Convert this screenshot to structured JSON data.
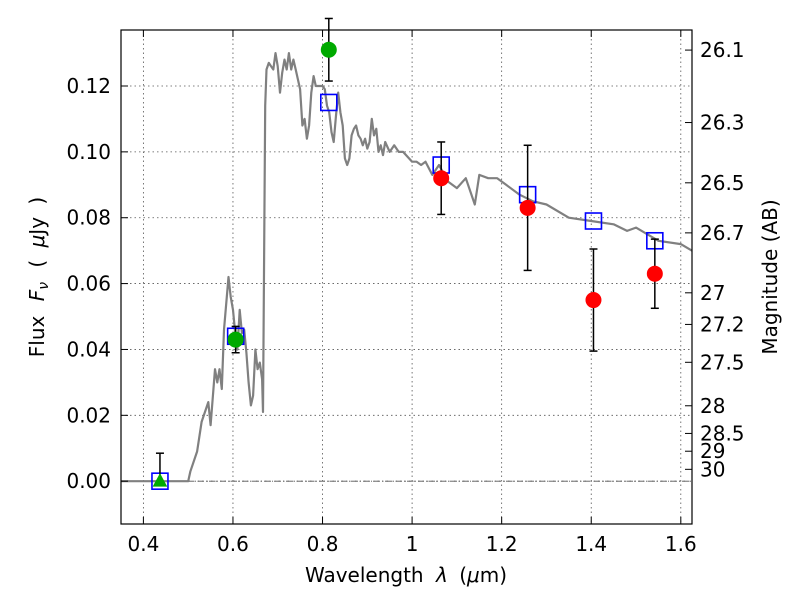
{
  "chart_data": {
    "type": "scatter",
    "xlabel_parts": [
      "Wavelength",
      "λ",
      "(",
      "μ",
      "m)"
    ],
    "ylabel_parts": [
      "Flux",
      "F",
      "ν",
      "(",
      "μ",
      "Jy",
      ")"
    ],
    "y2label": "Magnitude (AB)",
    "xlim": [
      0.35,
      1.625
    ],
    "ylim": [
      -0.013,
      0.137
    ],
    "xticks": [
      0.4,
      0.6,
      0.8,
      1.0,
      1.2,
      1.4,
      1.6
    ],
    "xtick_labels": [
      "0.4",
      "0.6",
      "0.8",
      "1",
      "1.2",
      "1.4",
      "1.6"
    ],
    "yticks": [
      0.0,
      0.02,
      0.04,
      0.06,
      0.08,
      0.1,
      0.12
    ],
    "ytick_labels": [
      "0.00",
      "0.02",
      "0.04",
      "0.06",
      "0.08",
      "0.10",
      "0.12"
    ],
    "grid": true,
    "mag_ticks": [
      {
        "label": "26.1",
        "flux": 0.1309
      },
      {
        "label": "26.3",
        "flux": 0.1089
      },
      {
        "label": "26.5",
        "flux": 0.0906
      },
      {
        "label": "26.7",
        "flux": 0.0754
      },
      {
        "label": "27",
        "flux": 0.0572
      },
      {
        "label": "27.2",
        "flux": 0.0476
      },
      {
        "label": "27.5",
        "flux": 0.0361
      },
      {
        "label": "28",
        "flux": 0.0229
      },
      {
        "label": "28.5",
        "flux": 0.0145
      },
      {
        "label": "29",
        "flux": 0.0091
      },
      {
        "label": "30",
        "flux": 0.0036
      }
    ],
    "series": [
      {
        "style": "model-spectrum",
        "color": "#808080",
        "x": [
          0.35,
          0.5,
          0.505,
          0.52,
          0.53,
          0.545,
          0.55,
          0.56,
          0.565,
          0.57,
          0.575,
          0.58,
          0.59,
          0.595,
          0.6,
          0.605,
          0.61,
          0.615,
          0.62,
          0.625,
          0.63,
          0.635,
          0.64,
          0.645,
          0.65,
          0.655,
          0.66,
          0.665,
          0.667,
          0.672,
          0.675,
          0.68,
          0.685,
          0.69,
          0.695,
          0.7,
          0.705,
          0.71,
          0.715,
          0.72,
          0.725,
          0.73,
          0.735,
          0.74,
          0.745,
          0.75,
          0.755,
          0.76,
          0.765,
          0.77,
          0.775,
          0.78,
          0.785,
          0.79,
          0.8,
          0.805,
          0.81,
          0.815,
          0.82,
          0.825,
          0.83,
          0.835,
          0.84,
          0.845,
          0.85,
          0.855,
          0.86,
          0.865,
          0.87,
          0.875,
          0.88,
          0.885,
          0.89,
          0.895,
          0.9,
          0.905,
          0.91,
          0.915,
          0.92,
          0.925,
          0.93,
          0.935,
          0.94,
          0.95,
          0.96,
          0.97,
          0.98,
          1.0,
          1.01,
          1.02,
          1.03,
          1.045,
          1.06,
          1.08,
          1.1,
          1.12,
          1.14,
          1.15,
          1.17,
          1.19,
          1.21,
          1.24,
          1.27,
          1.3,
          1.35,
          1.4,
          1.45,
          1.48,
          1.5,
          1.55,
          1.6,
          1.625
        ],
        "y": [
          0.0,
          0.0,
          0.003,
          0.009,
          0.018,
          0.024,
          0.017,
          0.034,
          0.03,
          0.034,
          0.028,
          0.046,
          0.062,
          0.056,
          0.052,
          0.045,
          0.04,
          0.052,
          0.045,
          0.046,
          0.039,
          0.03,
          0.023,
          0.026,
          0.04,
          0.034,
          0.036,
          0.031,
          0.021,
          0.114,
          0.125,
          0.127,
          0.126,
          0.125,
          0.13,
          0.126,
          0.118,
          0.124,
          0.128,
          0.125,
          0.13,
          0.125,
          0.128,
          0.125,
          0.122,
          0.119,
          0.108,
          0.11,
          0.104,
          0.108,
          0.118,
          0.123,
          0.12,
          0.12,
          0.12,
          0.119,
          0.114,
          0.112,
          0.106,
          0.103,
          0.111,
          0.118,
          0.112,
          0.108,
          0.098,
          0.096,
          0.098,
          0.105,
          0.107,
          0.108,
          0.105,
          0.104,
          0.102,
          0.104,
          0.101,
          0.103,
          0.11,
          0.105,
          0.107,
          0.1,
          0.102,
          0.099,
          0.103,
          0.1,
          0.102,
          0.1,
          0.1,
          0.097,
          0.097,
          0.096,
          0.097,
          0.093,
          0.096,
          0.091,
          0.089,
          0.092,
          0.084,
          0.093,
          0.092,
          0.092,
          0.09,
          0.087,
          0.085,
          0.084,
          0.08,
          0.079,
          0.078,
          0.076,
          0.077,
          0.073,
          0.072,
          0.07
        ]
      },
      {
        "style": "open-square",
        "color": "#0000ff",
        "x": [
          0.437,
          0.606,
          0.814,
          1.065,
          1.258,
          1.405,
          1.542
        ],
        "y": [
          0.0,
          0.044,
          0.115,
          0.096,
          0.087,
          0.079,
          0.073
        ]
      },
      {
        "style": "green-circle",
        "color": "#00aa00",
        "x": [
          0.606,
          0.814
        ],
        "y": [
          0.043,
          0.131
        ],
        "err": [
          0.004,
          0.0095
        ]
      },
      {
        "style": "green-triangle",
        "color": "#00aa00",
        "x": [
          0.437
        ],
        "y": [
          0.0
        ],
        "err_up": [
          0.0085
        ]
      },
      {
        "style": "red-circle",
        "color": "#ff0000",
        "x": [
          1.065,
          1.258,
          1.405,
          1.542
        ],
        "y": [
          0.092,
          0.083,
          0.055,
          0.063
        ],
        "err": [
          0.011,
          0.019,
          0.0155,
          0.0105
        ]
      }
    ]
  }
}
